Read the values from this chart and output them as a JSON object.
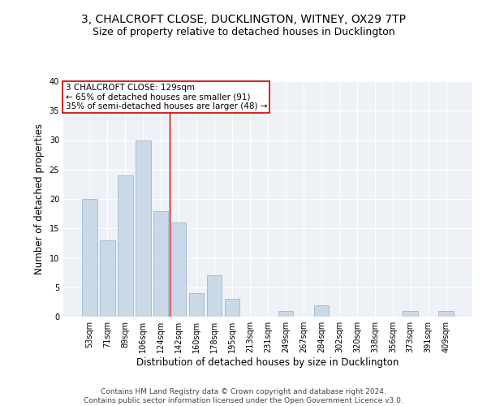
{
  "title_line1": "3, CHALCROFT CLOSE, DUCKLINGTON, WITNEY, OX29 7TP",
  "title_line2": "Size of property relative to detached houses in Ducklington",
  "xlabel": "Distribution of detached houses by size in Ducklington",
  "ylabel": "Number of detached properties",
  "categories": [
    "53sqm",
    "71sqm",
    "89sqm",
    "106sqm",
    "124sqm",
    "142sqm",
    "160sqm",
    "178sqm",
    "195sqm",
    "213sqm",
    "231sqm",
    "249sqm",
    "267sqm",
    "284sqm",
    "302sqm",
    "320sqm",
    "338sqm",
    "356sqm",
    "373sqm",
    "391sqm",
    "409sqm"
  ],
  "values": [
    20,
    13,
    24,
    30,
    18,
    16,
    4,
    7,
    3,
    0,
    0,
    1,
    0,
    2,
    0,
    0,
    0,
    0,
    1,
    0,
    1
  ],
  "bar_color": "#c9d9e8",
  "bar_edge_color": "#a0b8cc",
  "vline_x": 4.5,
  "vline_color": "#cc0000",
  "annotation_text": "3 CHALCROFT CLOSE: 129sqm\n← 65% of detached houses are smaller (91)\n35% of semi-detached houses are larger (48) →",
  "annotation_box_color": "#ffffff",
  "annotation_box_edge": "#cc0000",
  "ylim": [
    0,
    40
  ],
  "yticks": [
    0,
    5,
    10,
    15,
    20,
    25,
    30,
    35,
    40
  ],
  "footnote": "Contains HM Land Registry data © Crown copyright and database right 2024.\nContains public sector information licensed under the Open Government Licence v3.0.",
  "background_color": "#eef2f7",
  "title_fontsize": 10,
  "subtitle_fontsize": 9,
  "tick_fontsize": 7,
  "label_fontsize": 8.5,
  "footnote_fontsize": 6.5,
  "annotation_fontsize": 7.5
}
